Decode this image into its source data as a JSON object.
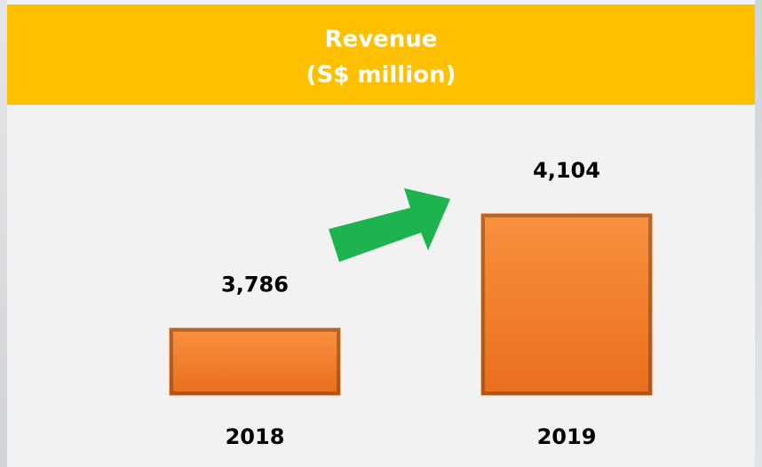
{
  "chart_data": {
    "type": "bar",
    "title": "Revenue",
    "subtitle": "(S$ million)",
    "categories": [
      "2018",
      "2019"
    ],
    "values": [
      3786,
      4104
    ],
    "value_labels": [
      "3,786",
      "4,104"
    ],
    "color": "#f07f2c",
    "ylim": [
      3600,
      4200
    ]
  }
}
